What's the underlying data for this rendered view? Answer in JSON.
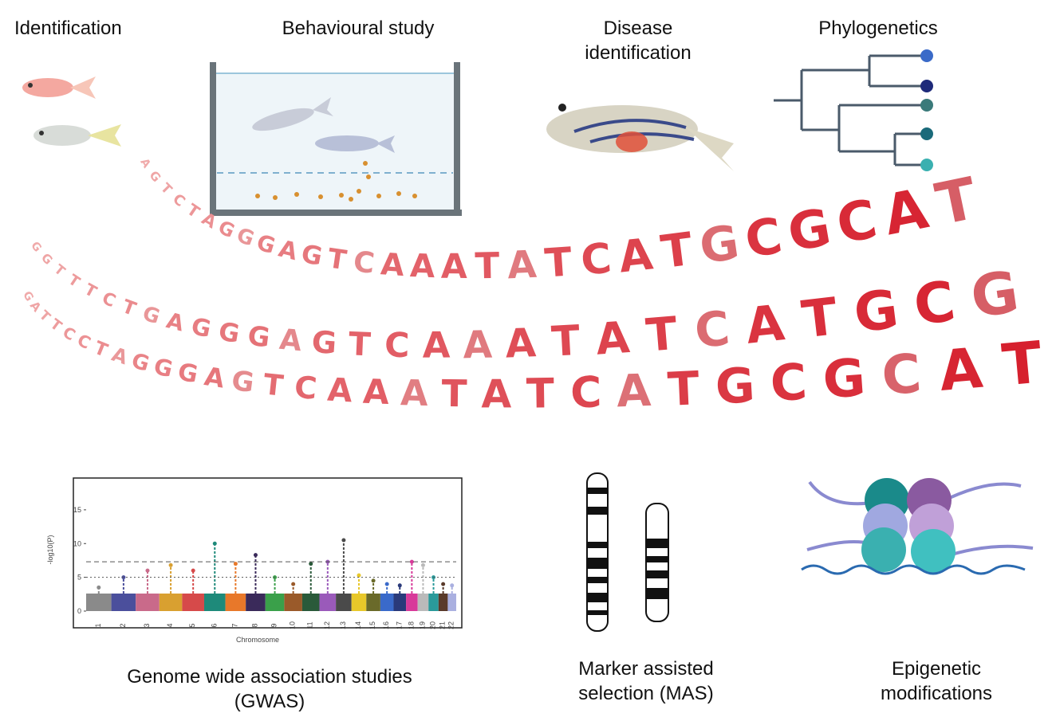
{
  "labels": {
    "identification": "Identification",
    "behavioural": "Behavioural study",
    "disease": [
      "Disease",
      "identification"
    ],
    "phylogenetics": "Phylogenetics",
    "gwas": [
      "Genome wide association studies",
      "(GWAS)"
    ],
    "mas": [
      "Marker assisted",
      "selection (MAS)"
    ],
    "epigenetic": [
      "Epigenetic",
      "modifications"
    ]
  },
  "dna": {
    "rows": [
      [
        "A",
        "G",
        "T",
        "C",
        "T",
        "A",
        "G",
        "G",
        "G",
        "A",
        "G",
        "T",
        "C",
        "A",
        "A",
        "A",
        "T",
        "A",
        "T",
        "C",
        "A",
        "T",
        "G",
        "C",
        "G",
        "C",
        "A",
        "T"
      ],
      [
        "G",
        "G",
        "T",
        "T",
        "T",
        "C",
        "T",
        "G",
        "A",
        "G",
        "G",
        "G",
        "A",
        "G",
        "T",
        "C",
        "A",
        "A",
        "A",
        "T",
        "A",
        "T",
        "C",
        "A",
        "T",
        "G",
        "C",
        "G"
      ],
      [
        "G",
        "A",
        "T",
        "T",
        "C",
        "C",
        "T",
        "A",
        "G",
        "G",
        "G",
        "A",
        "G",
        "T",
        "C",
        "A",
        "A",
        "A",
        "T",
        "A",
        "T",
        "C",
        "A",
        "T",
        "G",
        "C",
        "G",
        "C",
        "A",
        "T"
      ]
    ]
  },
  "gwas": {
    "y_label": "-log10(P)",
    "x_label": "Chromosome",
    "ylim": [
      0,
      19
    ],
    "yticks": [
      0,
      5,
      10,
      15
    ],
    "thresholds": [
      7.3,
      5
    ],
    "chromosomes": [
      1,
      2,
      3,
      4,
      5,
      6,
      7,
      8,
      9,
      10,
      11,
      12,
      13,
      14,
      15,
      16,
      17,
      18,
      19,
      20,
      21,
      22
    ],
    "peaks": [
      3.5,
      5,
      6,
      6.8,
      6,
      10,
      7,
      8.3,
      5,
      4,
      7,
      7.3,
      10.5,
      5.3,
      4.5,
      4,
      3.8,
      7.3,
      6.8,
      5,
      4,
      3.8
    ],
    "colors": [
      "#8a8a8a",
      "#4b4f9c",
      "#c96a8a",
      "#d9a030",
      "#d64a4a",
      "#1e8a7a",
      "#e8782a",
      "#3a2a5a",
      "#3aa04a",
      "#9a5a2a",
      "#2a5a3a",
      "#9a5aba",
      "#4a4a4a",
      "#e8c82a",
      "#6a6a2a",
      "#3a6aca",
      "#2a3a7a",
      "#d83a9a",
      "#bababa",
      "#2a9a9a",
      "#5a3a2a",
      "#aab0e0"
    ]
  }
}
